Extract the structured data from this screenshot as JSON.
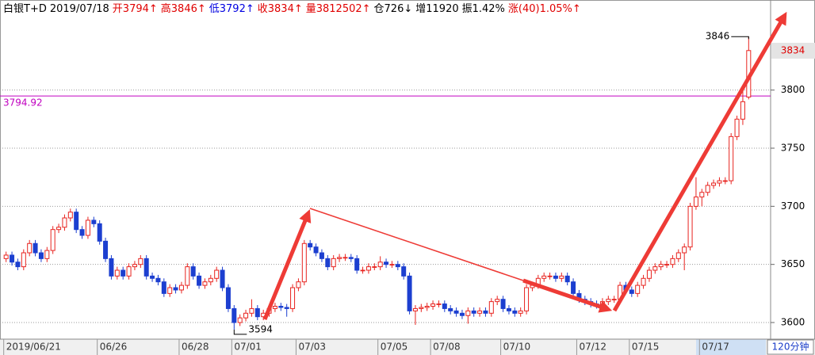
{
  "header": {
    "items": [
      {
        "text": "白银T+D",
        "color": "#000000"
      },
      {
        "text": "2019/07/18",
        "color": "#000000"
      },
      {
        "text": "开3794↑",
        "color": "#e00000"
      },
      {
        "text": "高3846↑",
        "color": "#e00000"
      },
      {
        "text": "低3792↑",
        "color": "#0000e0"
      },
      {
        "text": "收3834↑",
        "color": "#e00000"
      },
      {
        "text": "量3812502↑",
        "color": "#e00000"
      },
      {
        "text": "仓726↓",
        "color": "#000000"
      },
      {
        "text": "增11920",
        "color": "#000000"
      },
      {
        "text": "振1.42%",
        "color": "#000000"
      },
      {
        "text": "涨(40)1.05%↑",
        "color": "#e00000"
      }
    ]
  },
  "chart_data": {
    "type": "candlestick",
    "period": "120分钟",
    "categories": [
      "2019/06/21",
      null,
      null,
      null,
      null,
      null,
      null,
      null,
      null,
      null,
      null,
      null,
      null,
      null,
      null,
      null,
      "06/26",
      null,
      null,
      null,
      null,
      null,
      null,
      null,
      null,
      null,
      null,
      null,
      null,
      null,
      "06/28",
      null,
      null,
      null,
      null,
      null,
      null,
      null,
      null,
      "07/01",
      null,
      null,
      null,
      null,
      null,
      null,
      null,
      null,
      null,
      null,
      "07/03",
      null,
      null,
      null,
      null,
      null,
      null,
      null,
      null,
      null,
      null,
      null,
      null,
      null,
      "07/05",
      null,
      null,
      null,
      null,
      null,
      null,
      null,
      null,
      "07/08",
      null,
      null,
      null,
      null,
      null,
      null,
      null,
      null,
      null,
      null,
      null,
      "07/10",
      null,
      null,
      null,
      null,
      null,
      null,
      null,
      null,
      null,
      null,
      null,
      null,
      "07/12",
      null,
      null,
      null,
      null,
      null,
      null,
      null,
      null,
      "07/15",
      null,
      null,
      null,
      null,
      null,
      null,
      null,
      null,
      null,
      null,
      null,
      "07/17",
      null,
      null,
      null,
      null,
      null,
      null,
      null,
      null
    ],
    "open": [
      3655,
      3658,
      3652,
      3648,
      3660,
      3668,
      3660,
      3655,
      3662,
      3680,
      3682,
      3690,
      3695,
      3680,
      3675,
      3688,
      3685,
      3670,
      3655,
      3640,
      3645,
      3640,
      3648,
      3650,
      3655,
      3640,
      3638,
      3635,
      3625,
      3630,
      3628,
      3632,
      3648,
      3640,
      3632,
      3635,
      3638,
      3645,
      3630,
      3612,
      3600,
      3604,
      3608,
      3612,
      3605,
      3608,
      3612,
      3614,
      3613,
      3612,
      3630,
      3635,
      3668,
      3665,
      3660,
      3655,
      3648,
      3655,
      3656,
      3656,
      3655,
      3645,
      3645,
      3648,
      3648,
      3652,
      3650,
      3650,
      3648,
      3640,
      3610,
      3612,
      3613,
      3614,
      3616,
      3616,
      3612,
      3610,
      3608,
      3606,
      3610,
      3608,
      3610,
      3608,
      3618,
      3620,
      3612,
      3610,
      3608,
      3610,
      3630,
      3632,
      3638,
      3640,
      3640,
      3638,
      3640,
      3635,
      3625,
      3620,
      3618,
      3616,
      3615,
      3618,
      3620,
      3620,
      3632,
      3628,
      3625,
      3632,
      3638,
      3645,
      3648,
      3650,
      3650,
      3655,
      3660,
      3665,
      3700,
      3708,
      3712,
      3718,
      3720,
      3722,
      3722,
      3760,
      3775,
      3794
    ],
    "high": [
      3661,
      3661,
      3655,
      3663,
      3671,
      3671,
      3663,
      3665,
      3683,
      3685,
      3693,
      3698,
      3698,
      3683,
      3691,
      3691,
      3688,
      3673,
      3658,
      3648,
      3648,
      3651,
      3653,
      3658,
      3658,
      3643,
      3641,
      3638,
      3633,
      3633,
      3635,
      3651,
      3651,
      3643,
      3638,
      3641,
      3648,
      3648,
      3633,
      3615,
      3607,
      3611,
      3620,
      3615,
      3611,
      3615,
      3617,
      3617,
      3616,
      3633,
      3638,
      3671,
      3671,
      3668,
      3663,
      3658,
      3658,
      3659,
      3659,
      3659,
      3658,
      3648,
      3651,
      3651,
      3657,
      3655,
      3653,
      3653,
      3651,
      3643,
      3615,
      3616,
      3617,
      3619,
      3619,
      3619,
      3615,
      3613,
      3611,
      3613,
      3613,
      3613,
      3613,
      3621,
      3623,
      3623,
      3615,
      3613,
      3613,
      3633,
      3635,
      3641,
      3643,
      3643,
      3643,
      3643,
      3643,
      3638,
      3628,
      3623,
      3621,
      3619,
      3621,
      3623,
      3623,
      3635,
      3635,
      3631,
      3635,
      3641,
      3648,
      3651,
      3653,
      3653,
      3658,
      3663,
      3668,
      3703,
      3725,
      3715,
      3721,
      3723,
      3725,
      3725,
      3763,
      3778,
      3800,
      3846
    ],
    "low": [
      3652,
      3649,
      3645,
      3645,
      3657,
      3657,
      3652,
      3652,
      3659,
      3677,
      3679,
      3687,
      3677,
      3672,
      3672,
      3682,
      3667,
      3652,
      3637,
      3637,
      3637,
      3637,
      3645,
      3647,
      3637,
      3635,
      3632,
      3622,
      3622,
      3625,
      3625,
      3629,
      3637,
      3629,
      3629,
      3632,
      3635,
      3627,
      3609,
      3594,
      3597,
      3601,
      3605,
      3602,
      3602,
      3605,
      3609,
      3610,
      3605,
      3609,
      3627,
      3632,
      3662,
      3657,
      3652,
      3645,
      3645,
      3652,
      3653,
      3652,
      3642,
      3642,
      3642,
      3645,
      3645,
      3647,
      3647,
      3645,
      3637,
      3607,
      3598,
      3609,
      3610,
      3611,
      3613,
      3609,
      3607,
      3605,
      3603,
      3599,
      3605,
      3605,
      3605,
      3605,
      3615,
      3609,
      3607,
      3605,
      3605,
      3607,
      3627,
      3629,
      3635,
      3637,
      3635,
      3635,
      3632,
      3622,
      3617,
      3615,
      3613,
      3612,
      3612,
      3615,
      3617,
      3617,
      3625,
      3622,
      3622,
      3629,
      3635,
      3642,
      3645,
      3647,
      3647,
      3652,
      3645,
      3662,
      3697,
      3700,
      3709,
      3715,
      3717,
      3719,
      3719,
      3757,
      3770,
      3792
    ],
    "close": [
      3658,
      3652,
      3648,
      3660,
      3668,
      3660,
      3655,
      3662,
      3680,
      3682,
      3690,
      3695,
      3680,
      3675,
      3688,
      3685,
      3670,
      3655,
      3640,
      3645,
      3640,
      3648,
      3650,
      3655,
      3640,
      3638,
      3635,
      3625,
      3630,
      3628,
      3632,
      3648,
      3640,
      3632,
      3635,
      3638,
      3645,
      3630,
      3612,
      3600,
      3604,
      3608,
      3612,
      3605,
      3608,
      3612,
      3614,
      3613,
      3612,
      3630,
      3635,
      3668,
      3665,
      3660,
      3655,
      3648,
      3655,
      3656,
      3656,
      3655,
      3645,
      3645,
      3648,
      3648,
      3652,
      3650,
      3650,
      3648,
      3640,
      3610,
      3612,
      3613,
      3614,
      3616,
      3616,
      3612,
      3610,
      3608,
      3606,
      3610,
      3608,
      3610,
      3608,
      3618,
      3620,
      3612,
      3610,
      3608,
      3610,
      3630,
      3632,
      3638,
      3640,
      3640,
      3638,
      3640,
      3635,
      3625,
      3620,
      3618,
      3616,
      3615,
      3618,
      3620,
      3620,
      3632,
      3628,
      3625,
      3632,
      3638,
      3645,
      3648,
      3650,
      3650,
      3655,
      3660,
      3665,
      3700,
      3708,
      3712,
      3718,
      3720,
      3722,
      3722,
      3760,
      3775,
      3790,
      3834
    ],
    "up_color": "#e8231f",
    "down_color": "#1c3fd0",
    "ylim": [
      3585.7,
      3862.5
    ],
    "yticks": [
      3600,
      3650,
      3700,
      3750,
      3800
    ],
    "grid": true,
    "ref_line": 3794.92,
    "ref_color": "#c000c0",
    "last_price": 3834,
    "high_marker": 3846,
    "low_marker": 3594
  }
}
